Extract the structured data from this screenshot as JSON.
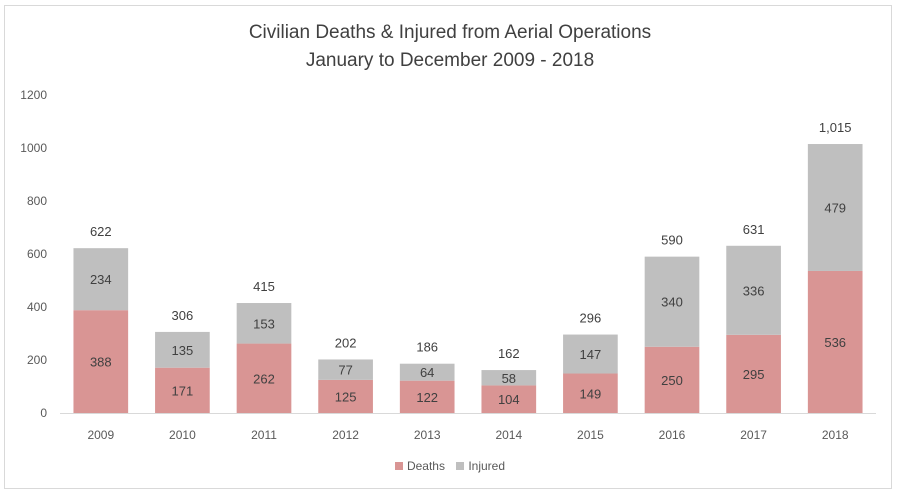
{
  "chart_data": {
    "type": "bar",
    "stacked": true,
    "title": "Civilian Deaths & Injured from Aerial Operations",
    "subtitle": "January to December  2009 - 2018",
    "xlabel": "",
    "ylabel": "",
    "categories": [
      "2009",
      "2010",
      "2011",
      "2012",
      "2013",
      "2014",
      "2015",
      "2016",
      "2017",
      "2018"
    ],
    "series": [
      {
        "name": "Deaths",
        "color": "#d99594",
        "values": [
          388,
          171,
          262,
          125,
          122,
          104,
          149,
          250,
          295,
          536
        ]
      },
      {
        "name": "Injured",
        "color": "#bfbfbf",
        "values": [
          234,
          135,
          153,
          77,
          64,
          58,
          147,
          340,
          336,
          479
        ]
      }
    ],
    "totals": [
      "622",
      "306",
      "415",
      "202",
      "186",
      "162",
      "296",
      "590",
      "631",
      "1,015"
    ],
    "ylim": [
      0,
      1200
    ],
    "yticks": [
      "0",
      "200",
      "400",
      "600",
      "800",
      "1000",
      "1200"
    ],
    "grid": false,
    "legend_position": "bottom"
  }
}
